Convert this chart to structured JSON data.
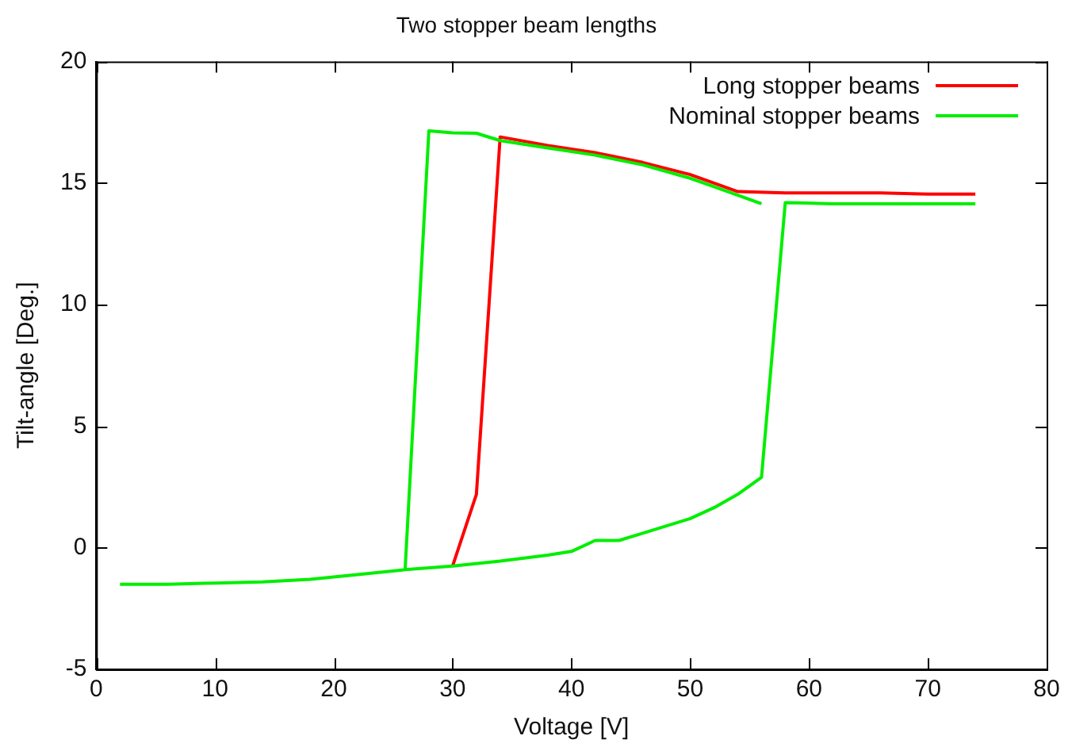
{
  "chart_data": {
    "type": "line",
    "title": "Two stopper beam lengths",
    "xlabel": "Voltage [V]",
    "ylabel": "Tilt-angle [Deg.]",
    "xlim": [
      0,
      80
    ],
    "xticks": [
      0,
      10,
      20,
      30,
      40,
      50,
      60,
      70,
      80
    ],
    "ylim": [
      -5,
      20
    ],
    "yticks": [
      -5,
      0,
      5,
      10,
      15,
      20
    ],
    "grid": false,
    "legend": "top right",
    "marker": "none",
    "line_style": "solid",
    "series": [
      {
        "name": "Long stopper beams",
        "color": "#ff0000",
        "x": [
          30,
          32,
          34,
          38,
          42,
          46,
          50,
          52,
          54,
          58,
          62,
          66,
          70,
          74
        ],
        "values": [
          -0.75,
          2.2,
          16.9,
          16.55,
          16.25,
          15.85,
          15.35,
          15.0,
          14.65,
          14.6,
          14.6,
          14.6,
          14.55,
          14.55
        ]
      },
      {
        "name": "Nominal stopper beams",
        "color": "#00ee00",
        "x": [
          2,
          6,
          10,
          14,
          18,
          22,
          26,
          30,
          34,
          38,
          40,
          42,
          44,
          46,
          48,
          50,
          52,
          54,
          56,
          58,
          62,
          66,
          70,
          74
        ],
        "values": [
          -1.5,
          -1.5,
          -1.45,
          -1.4,
          -1.3,
          -1.1,
          -0.9,
          -0.75,
          -0.55,
          -0.3,
          -0.15,
          0.3,
          0.3,
          0.6,
          0.9,
          1.2,
          1.65,
          2.2,
          2.9,
          14.2,
          14.15,
          14.15,
          14.15,
          14.15
        ]
      },
      {
        "color": "#00ee00",
        "x": [
          26,
          28,
          30,
          32,
          34,
          38,
          42,
          46,
          50,
          52,
          54,
          56
        ],
        "values": [
          -0.9,
          17.15,
          17.07,
          17.05,
          16.75,
          16.45,
          16.15,
          15.75,
          15.2,
          14.85,
          14.5,
          14.15
        ]
      }
    ]
  }
}
